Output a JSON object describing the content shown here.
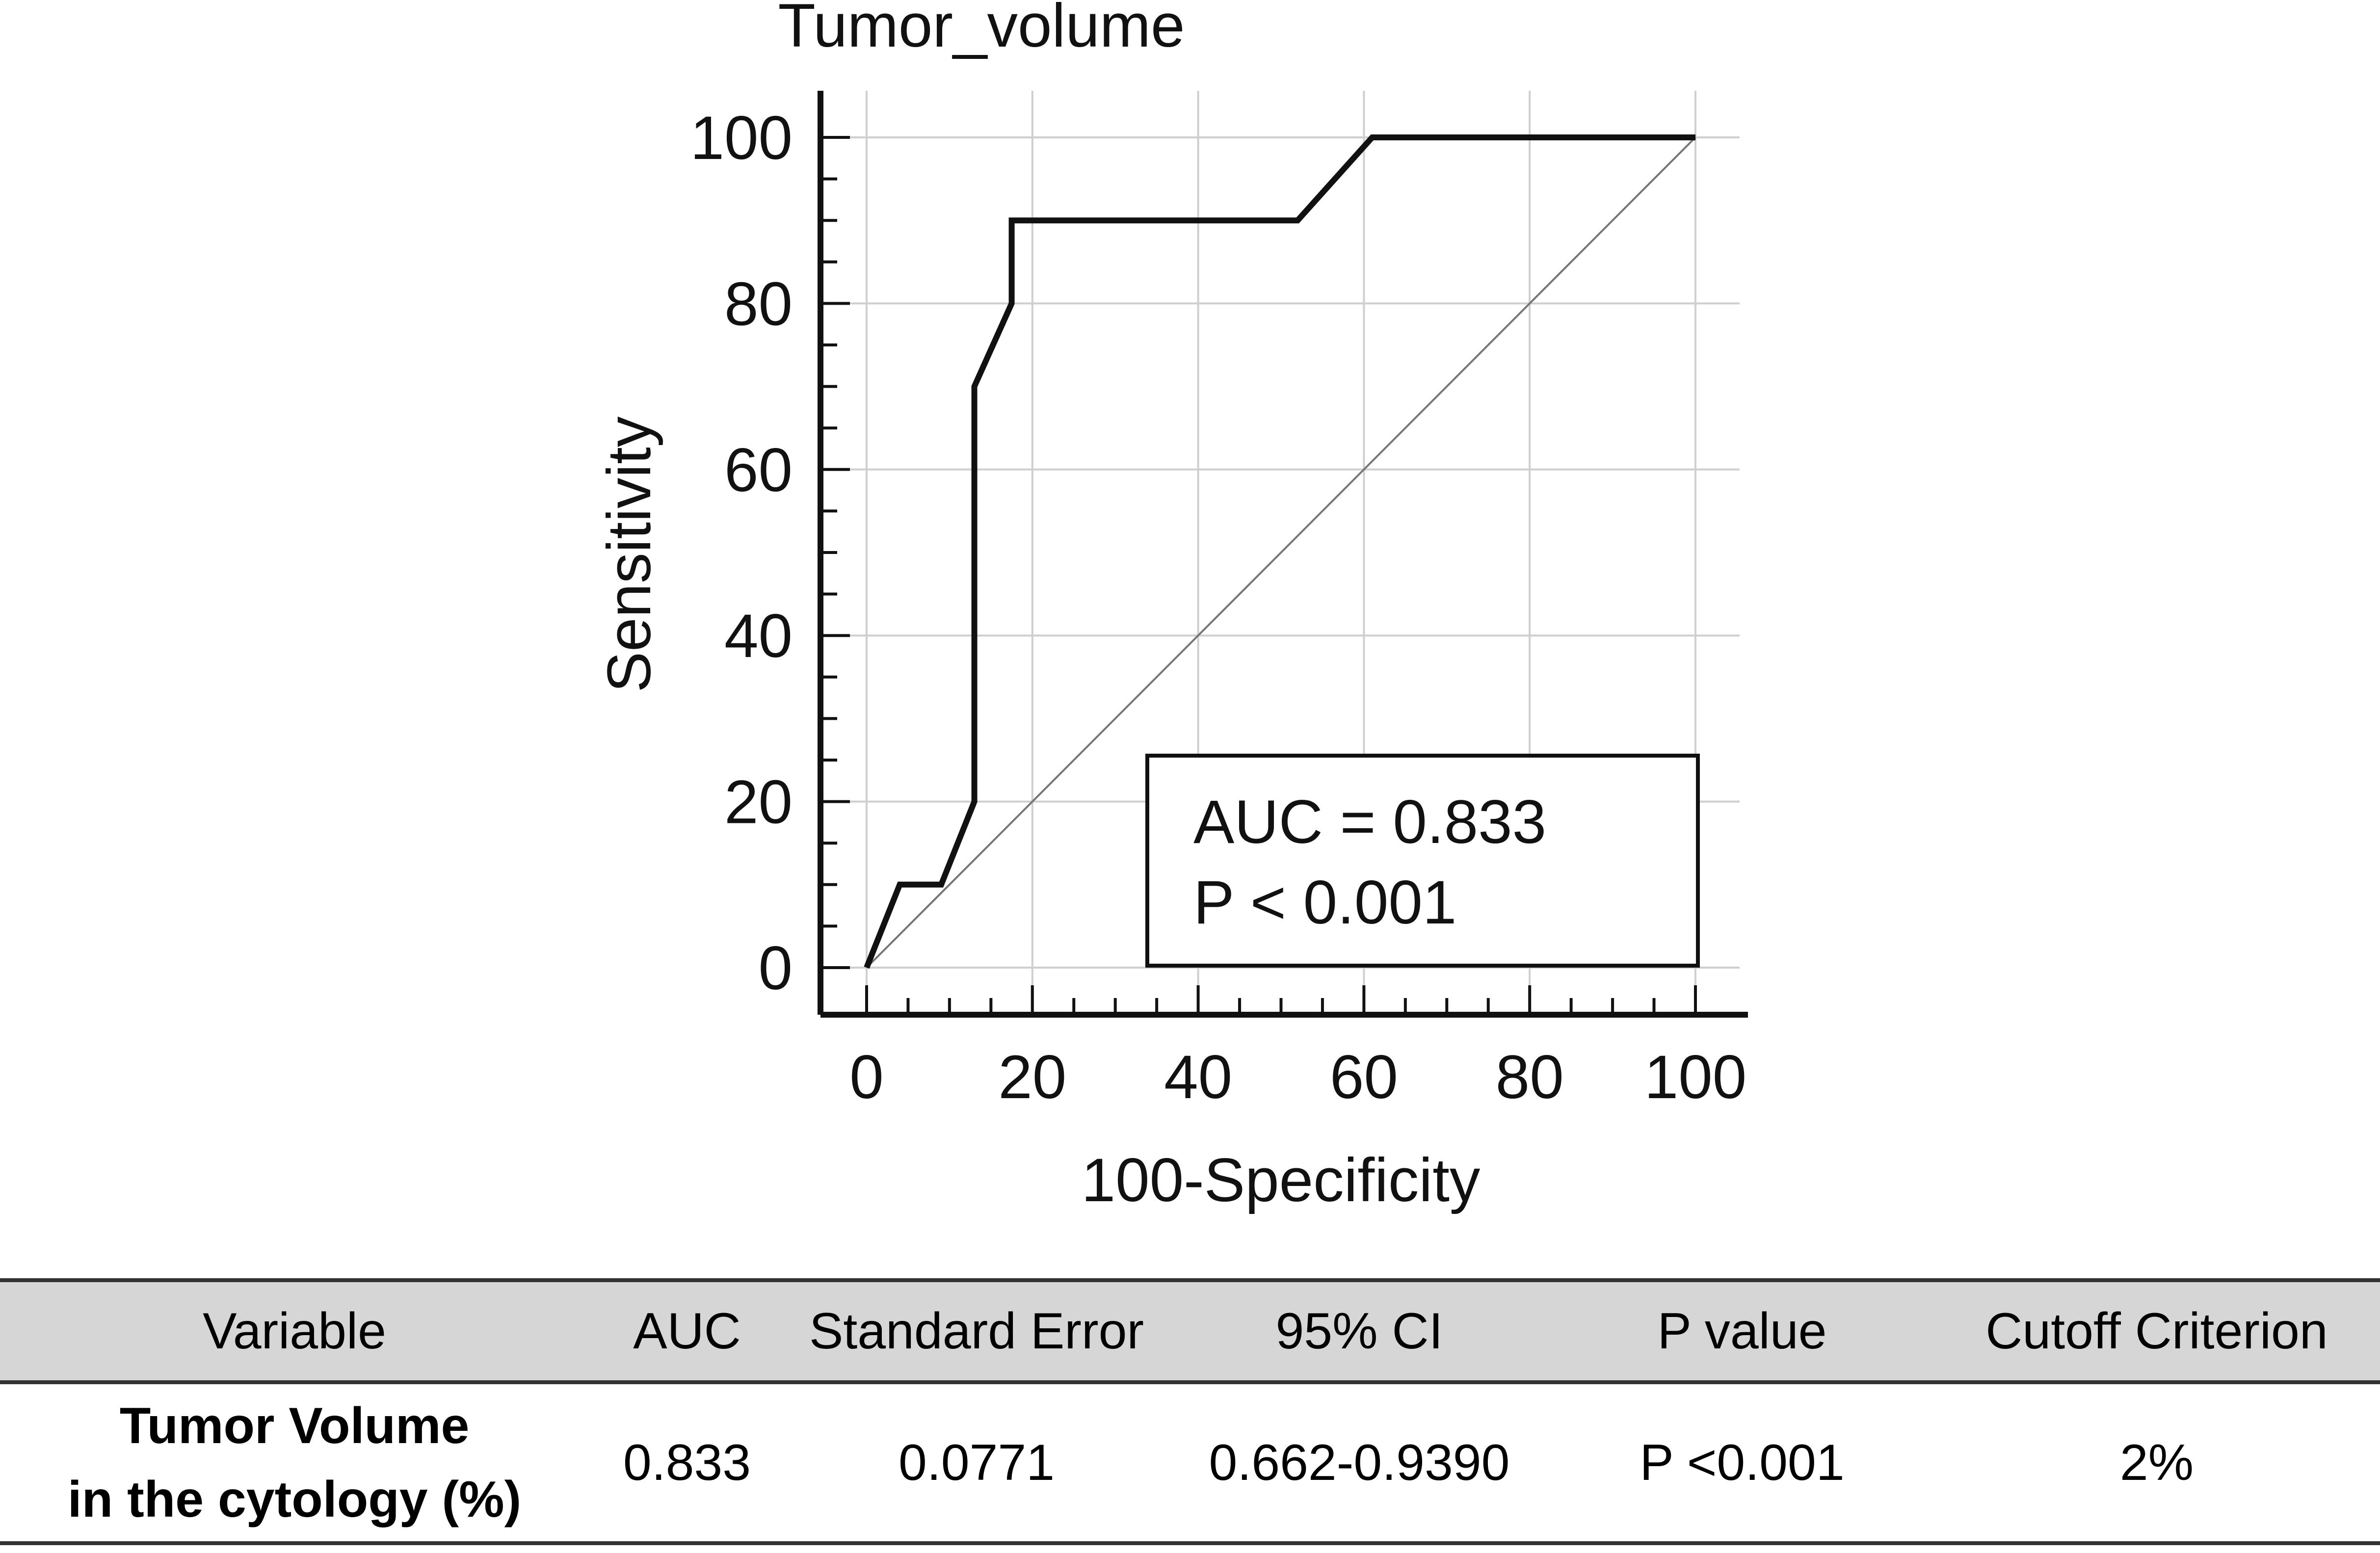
{
  "chart_data": {
    "type": "line",
    "title": "Tumor_volume",
    "xlabel": "100-Specificity",
    "ylabel": "Sensitivity",
    "xlim": [
      0,
      100
    ],
    "ylim": [
      0,
      100
    ],
    "xticks": [
      "0",
      "20",
      "40",
      "60",
      "80",
      "100"
    ],
    "yticks": [
      "0",
      "20",
      "40",
      "60",
      "80",
      "100"
    ],
    "grid": true,
    "series": [
      {
        "name": "",
        "x": [
          0,
          4,
          9,
          13,
          13,
          17.5,
          17.5,
          52,
          61,
          100
        ],
        "y": [
          0,
          10,
          10,
          20,
          70,
          80,
          90,
          90,
          100,
          100
        ]
      }
    ],
    "reference_line": {
      "x": [
        0,
        100
      ],
      "y": [
        0,
        100
      ]
    },
    "annotation": {
      "lines": [
        "AUC = 0.833",
        "P < 0.001"
      ],
      "position": "bottom-right"
    }
  },
  "table": {
    "headers": [
      "Variable",
      "AUC",
      "Standard Error",
      "95% CI",
      "P value",
      "Cutoff Criterion"
    ],
    "row": {
      "variable_lines": [
        "Tumor Volume",
        "in the cytology (%)"
      ],
      "auc": "0.833",
      "standard_error": "0.0771",
      "ci": "0.662-0.9390",
      "p_value": "P <0.001",
      "cutoff": "2%"
    }
  }
}
